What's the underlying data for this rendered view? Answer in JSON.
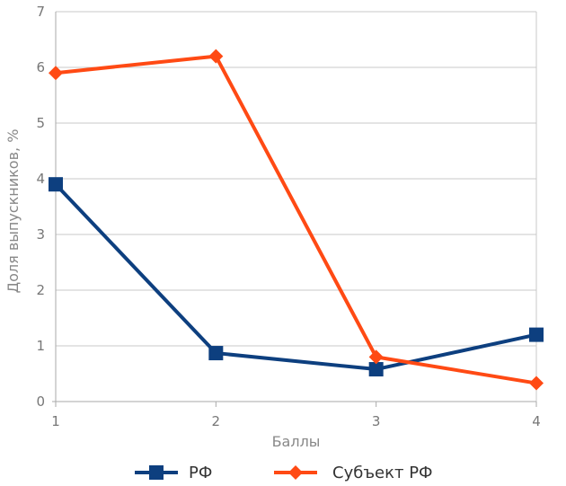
{
  "chart_data": {
    "type": "line",
    "title": "",
    "xlabel": "Баллы",
    "ylabel": "Доля выпускников, %",
    "x": [
      1,
      2,
      3,
      4
    ],
    "x_ticks": [
      "1",
      "2",
      "3",
      "4"
    ],
    "y_ticks": [
      "0",
      "1",
      "2",
      "3",
      "4",
      "5",
      "6",
      "7"
    ],
    "ylim": [
      0,
      7
    ],
    "grid": true,
    "legend_position": "bottom",
    "series": [
      {
        "name": "РФ",
        "values": [
          3.9,
          0.87,
          0.58,
          1.2
        ],
        "color": "#0d3f7f",
        "marker": "square"
      },
      {
        "name": "Субъект РФ",
        "values": [
          5.9,
          6.2,
          0.8,
          0.33
        ],
        "color": "#ff4a14",
        "marker": "diamond"
      }
    ]
  }
}
